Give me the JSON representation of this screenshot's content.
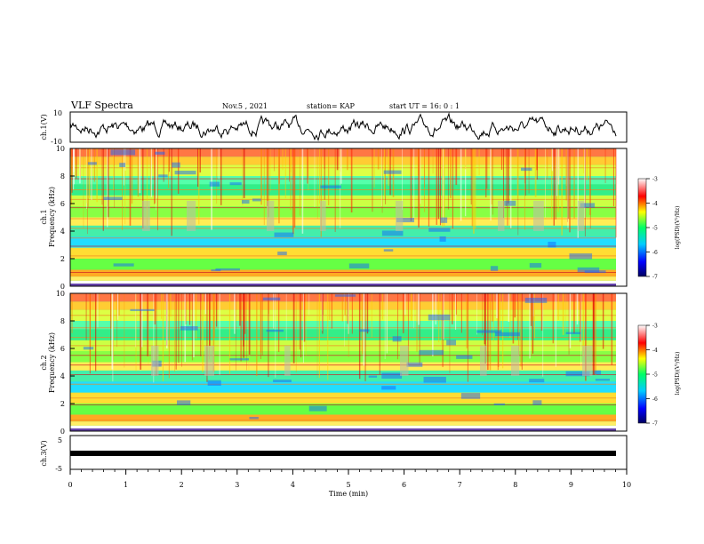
{
  "header": {
    "title": "VLF Spectra",
    "date": "Nov.5 , 2021",
    "station": "station= KAP",
    "start": "start UT = 16: 0 : 1"
  },
  "colorbar": {
    "label": "log(PSD)(V²/Hz)",
    "ticks": [
      "-3",
      "-4",
      "-5",
      "-6",
      "-7"
    ]
  },
  "chart_data": [
    {
      "type": "line",
      "title": "",
      "ylabel": "ch.1(V)",
      "xlim": [
        0,
        10
      ],
      "ylim": [
        -10,
        10
      ],
      "yticks": [
        "10",
        "-10"
      ],
      "series": [
        {
          "description": "noisy waveform fluctuating roughly between -4 and 4 V"
        }
      ]
    },
    {
      "type": "heatmap",
      "ylabel": "ch.1\nFrequency (kHz)",
      "ylabel_lines": [
        "ch.1",
        "Frequency (kHz)"
      ],
      "xlim": [
        0,
        10
      ],
      "ylim": [
        0,
        10
      ],
      "yticks": [
        "0",
        "2",
        "4",
        "6",
        "8",
        "10"
      ],
      "colorbar_range": [
        -7,
        -3
      ]
    },
    {
      "type": "heatmap",
      "ylabel_lines": [
        "ch.2",
        "Frequency (kHz)"
      ],
      "xlim": [
        0,
        10
      ],
      "ylim": [
        0,
        10
      ],
      "yticks": [
        "0",
        "2",
        "4",
        "6",
        "8",
        "10"
      ],
      "colorbar_range": [
        -7,
        -3
      ]
    },
    {
      "type": "line",
      "ylabel": "ch.3(V)",
      "xlim": [
        0,
        10
      ],
      "ylim": [
        -5,
        5
      ],
      "yticks": [
        "5",
        "-5"
      ],
      "xlabel": "Time (min)",
      "xticks": [
        "0",
        "1",
        "2",
        "3",
        "4",
        "5",
        "6",
        "7",
        "8",
        "9",
        "10"
      ]
    }
  ]
}
